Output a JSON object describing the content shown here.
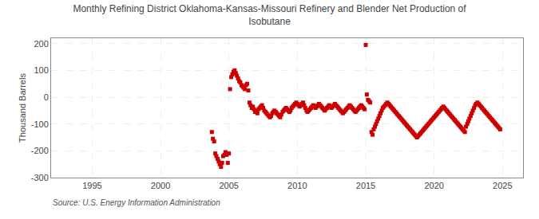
{
  "chart_data": {
    "type": "scatter",
    "title": "Monthly Refining District Oklahoma-Kansas-Missouri Refinery and Blender Net Production of\nIsobutane",
    "ylabel": "Thousand Barrels",
    "annotations": [
      "Source: U.S. Energy Information Administration"
    ],
    "color": "#cc0000",
    "marker": "square",
    "grid": true,
    "xlim": [
      1992.0,
      2026.5
    ],
    "ylim": [
      -300,
      220
    ],
    "xticks": [
      1995,
      2000,
      2005,
      2010,
      2015,
      2020,
      2025
    ],
    "yticks": [
      -300,
      -200,
      -100,
      0,
      100,
      200
    ],
    "x": [
      2003.75,
      2003.83,
      2003.92,
      2004.0,
      2004.08,
      2004.17,
      2004.25,
      2004.33,
      2004.42,
      2004.5,
      2004.58,
      2004.67,
      2004.75,
      2004.83,
      2004.92,
      2005.0,
      2005.08,
      2005.17,
      2005.25,
      2005.33,
      2005.42,
      2005.5,
      2005.58,
      2005.67,
      2005.75,
      2005.83,
      2005.92,
      2006.0,
      2006.08,
      2006.17,
      2006.25,
      2006.33,
      2006.42,
      2006.5,
      2006.58,
      2006.67,
      2006.75,
      2006.83,
      2006.92,
      2007.0,
      2007.08,
      2007.17,
      2007.25,
      2007.33,
      2007.42,
      2007.5,
      2007.58,
      2007.67,
      2007.75,
      2007.83,
      2007.92,
      2008.0,
      2008.08,
      2008.17,
      2008.25,
      2008.33,
      2008.42,
      2008.5,
      2008.58,
      2008.67,
      2008.75,
      2008.83,
      2008.92,
      2009.0,
      2009.08,
      2009.17,
      2009.25,
      2009.33,
      2009.42,
      2009.5,
      2009.58,
      2009.67,
      2009.75,
      2009.83,
      2009.92,
      2010.0,
      2010.08,
      2010.17,
      2010.25,
      2010.33,
      2010.42,
      2010.5,
      2010.58,
      2010.67,
      2010.75,
      2010.83,
      2010.92,
      2011.0,
      2011.08,
      2011.17,
      2011.25,
      2011.33,
      2011.42,
      2011.5,
      2011.58,
      2011.67,
      2011.75,
      2011.83,
      2011.92,
      2012.0,
      2012.08,
      2012.17,
      2012.25,
      2012.33,
      2012.42,
      2012.5,
      2012.58,
      2012.67,
      2012.75,
      2012.83,
      2012.92,
      2013.0,
      2013.08,
      2013.17,
      2013.25,
      2013.33,
      2013.42,
      2013.5,
      2013.58,
      2013.67,
      2013.75,
      2013.83,
      2013.92,
      2014.0,
      2014.08,
      2014.17,
      2014.25,
      2014.33,
      2014.42,
      2014.5,
      2014.58,
      2014.67,
      2014.75,
      2014.83,
      2014.92,
      2015.0,
      2015.08,
      2015.17,
      2015.25,
      2015.33,
      2015.42,
      2015.5,
      2015.58,
      2015.67,
      2015.75,
      2015.83,
      2015.92,
      2016.0,
      2016.08,
      2016.17,
      2016.25,
      2016.33,
      2016.42,
      2016.5,
      2016.58,
      2016.67,
      2016.75,
      2016.83,
      2016.92,
      2017.0,
      2017.08,
      2017.17,
      2017.25,
      2017.33,
      2017.42,
      2017.5,
      2017.58,
      2017.67,
      2017.75,
      2017.83,
      2017.92,
      2018.0,
      2018.08,
      2018.17,
      2018.25,
      2018.33,
      2018.42,
      2018.5,
      2018.58,
      2018.67,
      2018.75,
      2018.83,
      2018.92,
      2019.0,
      2019.08,
      2019.17,
      2019.25,
      2019.33,
      2019.42,
      2019.5,
      2019.58,
      2019.67,
      2019.75,
      2019.83,
      2019.92,
      2020.0,
      2020.08,
      2020.17,
      2020.25,
      2020.33,
      2020.42,
      2020.5,
      2020.58,
      2020.67,
      2020.75,
      2020.83,
      2020.92,
      2021.0,
      2021.08,
      2021.17,
      2021.25,
      2021.33,
      2021.42,
      2021.5,
      2021.58,
      2021.67,
      2021.75,
      2021.83,
      2021.92,
      2022.0,
      2022.08,
      2022.17,
      2022.25,
      2022.33,
      2022.42,
      2022.5,
      2022.58,
      2022.67,
      2022.75,
      2022.83,
      2022.92,
      2023.0,
      2023.08,
      2023.17,
      2023.25,
      2023.33,
      2023.42,
      2023.5,
      2023.58,
      2023.67,
      2023.75,
      2023.83,
      2023.92,
      2024.0,
      2024.08,
      2024.17,
      2024.25,
      2024.33,
      2024.42,
      2024.5,
      2024.58,
      2024.67,
      2024.75,
      2024.83
    ],
    "values": [
      -130,
      -155,
      -165,
      -210,
      -220,
      -230,
      -240,
      -250,
      -260,
      -245,
      -220,
      -215,
      -205,
      -215,
      -245,
      -210,
      30,
      75,
      85,
      95,
      100,
      90,
      80,
      70,
      60,
      55,
      45,
      40,
      35,
      30,
      45,
      50,
      25,
      -20,
      -30,
      -40,
      -35,
      -45,
      -55,
      -50,
      -60,
      -45,
      -40,
      -35,
      -30,
      -40,
      -50,
      -55,
      -60,
      -65,
      -70,
      -75,
      -70,
      -60,
      -55,
      -50,
      -55,
      -60,
      -65,
      -70,
      -75,
      -65,
      -55,
      -50,
      -45,
      -40,
      -45,
      -50,
      -55,
      -50,
      -40,
      -35,
      -30,
      -25,
      -20,
      -25,
      -30,
      -35,
      -30,
      -25,
      -20,
      -30,
      -40,
      -50,
      -55,
      -50,
      -45,
      -40,
      -35,
      -30,
      -35,
      -40,
      -35,
      -30,
      -25,
      -30,
      -35,
      -40,
      -45,
      -50,
      -45,
      -40,
      -35,
      -30,
      -35,
      -40,
      -35,
      -30,
      -25,
      -30,
      -35,
      -40,
      -45,
      -50,
      -55,
      -60,
      -55,
      -50,
      -45,
      -40,
      -35,
      -30,
      -35,
      -40,
      -45,
      -50,
      -55,
      -50,
      -45,
      -40,
      -35,
      -30,
      -35,
      -40,
      -45,
      195,
      10,
      -10,
      -15,
      -20,
      -130,
      -140,
      -120,
      -110,
      -100,
      -90,
      -80,
      -70,
      -60,
      -50,
      -40,
      -35,
      -30,
      -25,
      -20,
      -25,
      -30,
      -35,
      -40,
      -45,
      -50,
      -55,
      -60,
      -65,
      -70,
      -75,
      -80,
      -85,
      -90,
      -95,
      -100,
      -105,
      -110,
      -115,
      -120,
      -125,
      -130,
      -135,
      -140,
      -145,
      -150,
      -145,
      -140,
      -135,
      -130,
      -125,
      -120,
      -115,
      -110,
      -105,
      -100,
      -95,
      -90,
      -85,
      -80,
      -75,
      -70,
      -65,
      -60,
      -55,
      -50,
      -45,
      -40,
      -35,
      -40,
      -45,
      -50,
      -55,
      -60,
      -65,
      -70,
      -75,
      -80,
      -85,
      -90,
      -95,
      -100,
      -105,
      -110,
      -115,
      -120,
      -125,
      -130,
      -110,
      -100,
      -90,
      -80,
      -70,
      -60,
      -50,
      -40,
      -30,
      -25,
      -20,
      -25,
      -30,
      -35,
      -40,
      -45,
      -50,
      -55,
      -60,
      -65,
      -70,
      -75,
      -80,
      -85,
      -90,
      -95,
      -100,
      -105,
      -110,
      -115,
      -120
    ]
  }
}
